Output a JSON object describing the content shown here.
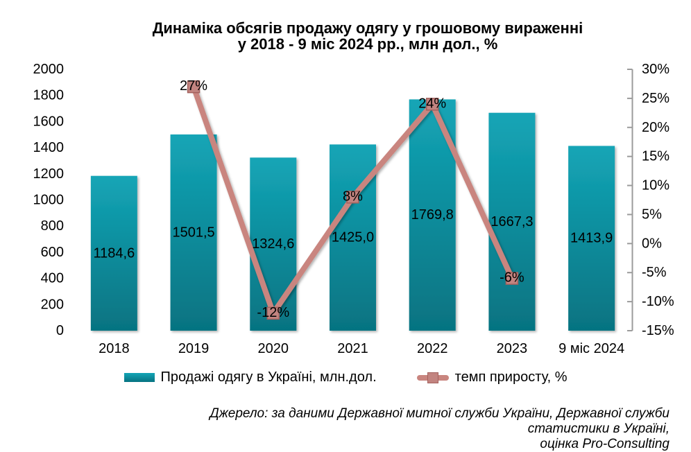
{
  "title": {
    "line1": "Динаміка обсягів продажу одягу у грошовому вираженні",
    "line2": "у 2018 - 9 міс 2024 рр., млн дол., %"
  },
  "chart_data": {
    "type": "bar+line combo",
    "categories": [
      "2018",
      "2019",
      "2020",
      "2021",
      "2022",
      "2023",
      "9 міс 2024"
    ],
    "series": [
      {
        "name": "Продажі одягу в Україні, млн.дол.",
        "type": "bar",
        "axis": "left",
        "values": [
          1184.6,
          1501.5,
          1324.6,
          1425.0,
          1769.8,
          1667.3,
          1413.9
        ],
        "labels": [
          "1184,6",
          "1501,5",
          "1324,6",
          "1425,0",
          "1769,8",
          "1667,3",
          "1413,9"
        ]
      },
      {
        "name": "темп приросту, %",
        "type": "line",
        "axis": "right",
        "values": [
          null,
          27,
          -12,
          8,
          24,
          -6,
          null
        ],
        "labels": [
          "",
          "27%",
          "-12%",
          "8%",
          "24%",
          "-6%",
          ""
        ]
      }
    ],
    "left_axis": {
      "min": 0,
      "max": 2000,
      "step": 200,
      "ticks": [
        "0",
        "200",
        "400",
        "600",
        "800",
        "1000",
        "1200",
        "1400",
        "1600",
        "1800",
        "2000"
      ]
    },
    "right_axis": {
      "min": -15,
      "max": 30,
      "step": 5,
      "ticks": [
        "-15%",
        "-10%",
        "-5%",
        "0%",
        "5%",
        "10%",
        "15%",
        "20%",
        "25%",
        "30%"
      ]
    },
    "grid": "off",
    "legend_position": "bottom"
  },
  "legend": {
    "items": [
      {
        "label": "Продажі одягу в Україні, млн.дол."
      },
      {
        "label": "темп приросту, %"
      }
    ]
  },
  "source": {
    "line1": "Джерело: за даними Державної митної служби України,  Державної служби статистики в Україні,",
    "line2": "оцінка Pro-Consulting"
  },
  "colors": {
    "bar_top": "#14a5b6",
    "bar_bottom": "#067381",
    "line": "#c9857f",
    "marker_fill": "#c28480",
    "marker_border": "#a3615d",
    "axis_line": "#9b9b9b",
    "text": "#000000"
  }
}
